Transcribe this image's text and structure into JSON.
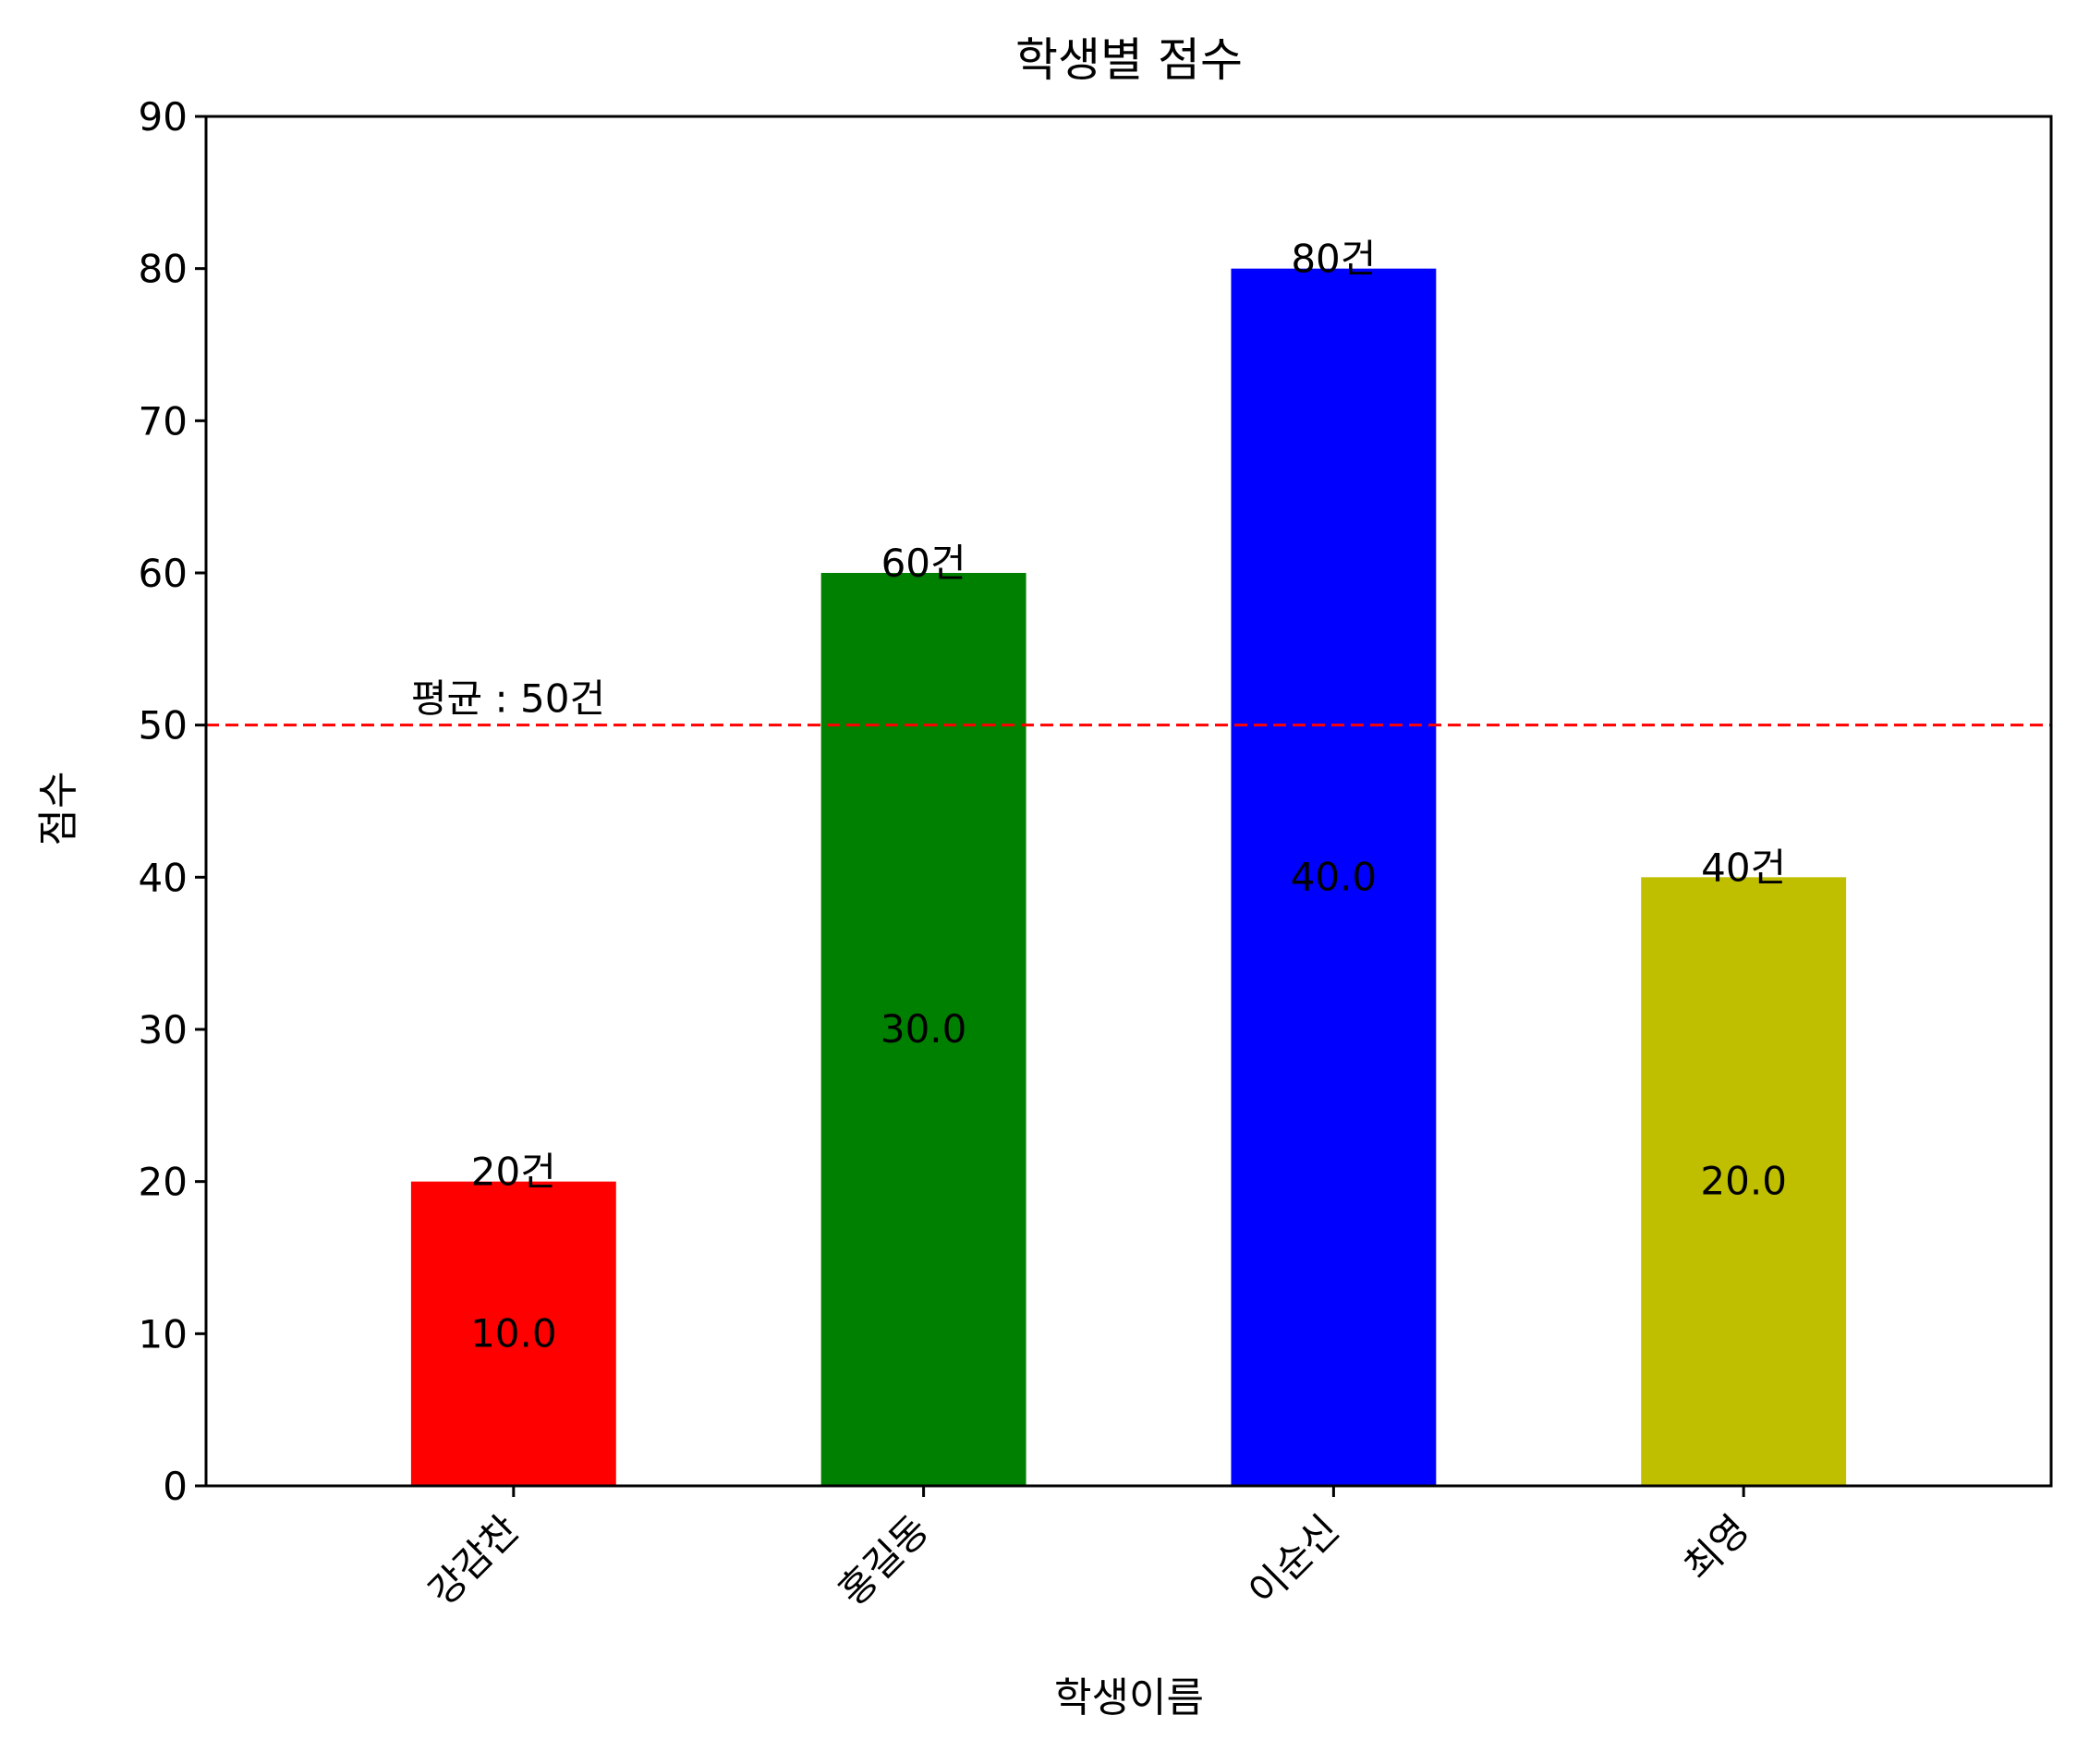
{
  "chart_data": {
    "type": "bar",
    "title": "학생별 점수",
    "xlabel": "학생이름",
    "ylabel": "점수",
    "categories": [
      "강감찬",
      "홍길동",
      "이순신",
      "최영"
    ],
    "values": [
      20,
      60,
      80,
      40
    ],
    "colors": [
      "#ff0000",
      "#008000",
      "#0000ff",
      "#bfbf00"
    ],
    "top_labels": [
      "20건",
      "60건",
      "80건",
      "40건"
    ],
    "mid_labels": [
      "10.0",
      "30.0",
      "40.0",
      "20.0"
    ],
    "ylim": [
      0,
      90
    ],
    "yticks": [
      0,
      10,
      20,
      30,
      40,
      50,
      60,
      70,
      80,
      90
    ],
    "grid": false,
    "reference_line": {
      "value": 50,
      "label": "평균 : 50건",
      "color": "#ff0000",
      "style": "dashed"
    }
  }
}
